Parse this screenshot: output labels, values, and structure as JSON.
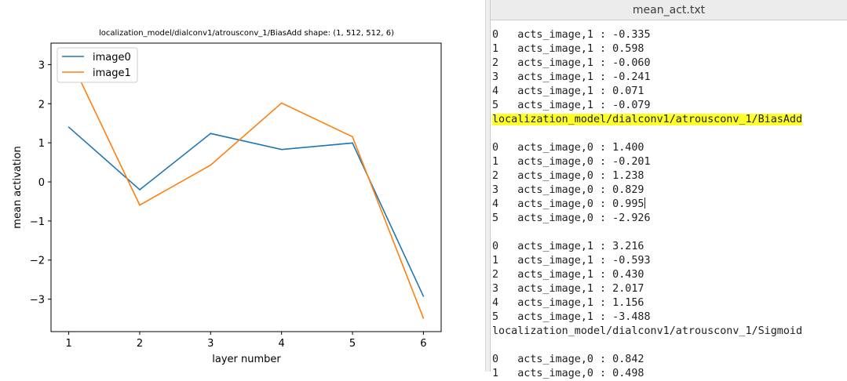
{
  "chart_data": {
    "type": "line",
    "title": "localization_model/dialconv1/atrousconv_1/BiasAdd  shape: (1, 512, 512, 6)",
    "xlabel": "layer number",
    "ylabel": "mean activation",
    "x": [
      1,
      2,
      3,
      4,
      5,
      6
    ],
    "xticks": [
      "1",
      "2",
      "3",
      "4",
      "5",
      "6"
    ],
    "xlim": [
      0.75,
      6.25
    ],
    "yticks": [
      "3",
      "2",
      "1",
      "0",
      "−1",
      "−2",
      "−3"
    ],
    "ytick_values": [
      3,
      2,
      1,
      0,
      -1,
      -2,
      -3
    ],
    "ylim": [
      -3.83,
      3.55
    ],
    "grid": false,
    "legend_position": "upper-left",
    "series": [
      {
        "name": "image0",
        "color": "#1f77b4",
        "values": [
          1.4,
          -0.201,
          1.238,
          0.829,
          0.995,
          -2.926
        ]
      },
      {
        "name": "image1",
        "color": "#ff7f0e",
        "values": [
          3.216,
          -0.593,
          0.43,
          2.017,
          1.156,
          -3.488
        ]
      }
    ]
  },
  "editor": {
    "title": "mean_act.txt",
    "lines": [
      "0   acts_image,1 : -0.335",
      "1   acts_image,1 : 0.598",
      "2   acts_image,1 : -0.060",
      "3   acts_image,1 : -0.241",
      "4   acts_image,1 : 0.071",
      "5   acts_image,1 : -0.079",
      "localization_model/dialconv1/atrousconv_1/BiasAdd",
      "",
      "0   acts_image,0 : 1.400",
      "1   acts_image,0 : -0.201",
      "2   acts_image,0 : 1.238",
      "3   acts_image,0 : 0.829",
      "4   acts_image,0 : 0.995",
      "5   acts_image,0 : -2.926",
      "",
      "0   acts_image,1 : 3.216",
      "1   acts_image,1 : -0.593",
      "2   acts_image,1 : 0.430",
      "3   acts_image,1 : 2.017",
      "4   acts_image,1 : 1.156",
      "5   acts_image,1 : -3.488",
      "localization_model/dialconv1/atrousconv_1/Sigmoid",
      "",
      "0   acts_image,0 : 0.842",
      "1   acts_image,0 : 0.498"
    ],
    "highlighted_line": 6,
    "cursor_line": 12
  }
}
